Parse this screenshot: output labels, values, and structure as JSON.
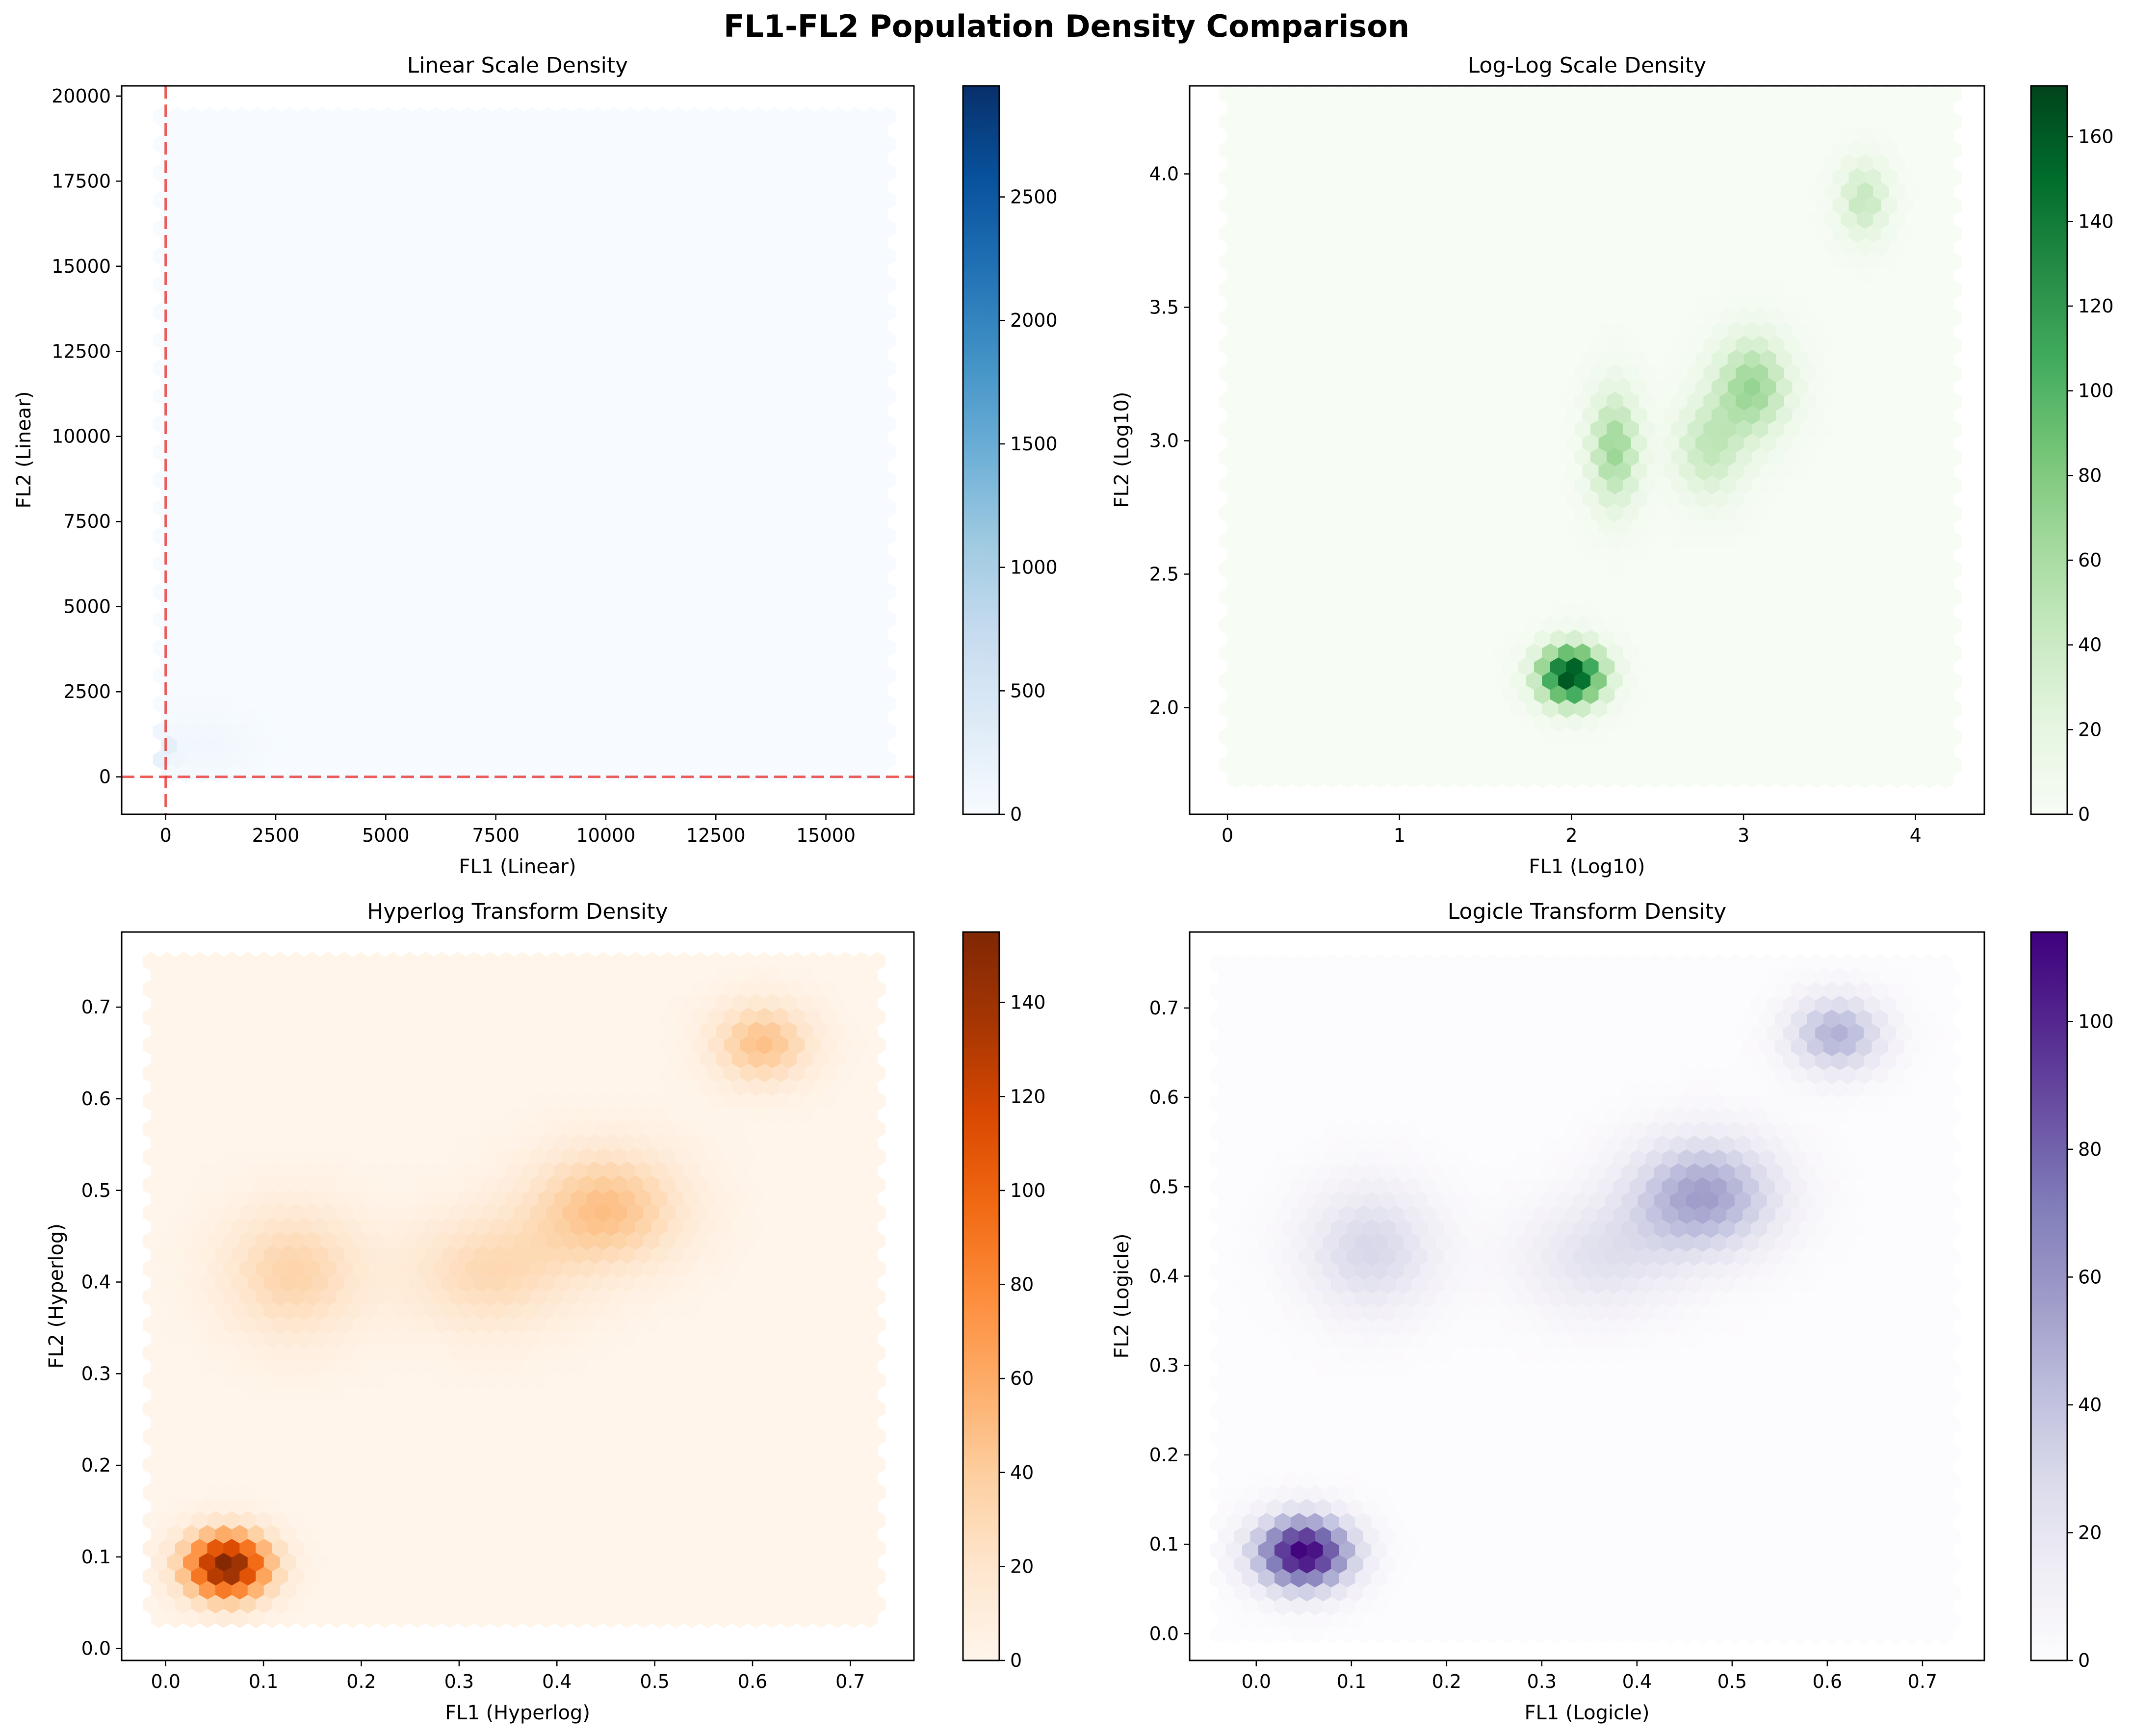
{
  "figure": {
    "suptitle": "FL1-FL2 Population Density Comparison"
  },
  "chart_data": [
    {
      "type": "heatmap",
      "subtype": "hexbin",
      "title": "Linear Scale Density",
      "xlabel": "FL1 (Linear)",
      "ylabel": "FL2 (Linear)",
      "xlim": [
        -1000,
        17000
      ],
      "ylim": [
        -1100,
        20300
      ],
      "data_extent": {
        "x": [
          -100,
          16400
        ],
        "y": [
          -150,
          19400
        ]
      },
      "xticks": [
        0,
        2500,
        5000,
        7500,
        10000,
        12500,
        15000
      ],
      "yticks": [
        0,
        2500,
        5000,
        7500,
        10000,
        12500,
        15000,
        17500,
        20000
      ],
      "colormap": "Blues",
      "colorbar": {
        "min": 0,
        "max": 2950,
        "ticks": [
          0,
          500,
          1000,
          1500,
          2000,
          2500
        ]
      },
      "reference_lines": {
        "x": 0,
        "y": 0,
        "color": "#e8403c",
        "style": "dashed"
      },
      "clusters": [
        {
          "x": -150,
          "y": -150,
          "peak": 2950,
          "sx": 60,
          "sy": 60
        },
        {
          "x": -50,
          "y": 800,
          "peak": 280,
          "sx": 220,
          "sy": 320
        },
        {
          "x": 900,
          "y": 900,
          "peak": 90,
          "sx": 800,
          "sy": 700
        }
      ]
    },
    {
      "type": "heatmap",
      "subtype": "hexbin",
      "title": "Log-Log Scale Density",
      "xlabel": "FL1 (Log10)",
      "ylabel": "FL2 (Log10)",
      "xlim": [
        -0.22,
        4.4
      ],
      "ylim": [
        1.6,
        4.33
      ],
      "data_extent": {
        "x": [
          0,
          4.25
        ],
        "y": [
          1.7,
          4.3
        ]
      },
      "xticks": [
        0,
        1,
        2,
        3,
        4
      ],
      "yticks": [
        2.0,
        2.5,
        3.0,
        3.5,
        4.0
      ],
      "colormap": "Greens",
      "colorbar": {
        "min": 0,
        "max": 172,
        "ticks": [
          0,
          20,
          40,
          60,
          80,
          100,
          120,
          140,
          160
        ]
      },
      "clusters": [
        {
          "x": 2.0,
          "y": 2.12,
          "peak": 172,
          "sx": 0.13,
          "sy": 0.075
        },
        {
          "x": 2.25,
          "y": 2.97,
          "peak": 68,
          "sx": 0.1,
          "sy": 0.15
        },
        {
          "x": 2.8,
          "y": 2.97,
          "peak": 45,
          "sx": 0.14,
          "sy": 0.13
        },
        {
          "x": 3.05,
          "y": 3.2,
          "peak": 68,
          "sx": 0.15,
          "sy": 0.13
        },
        {
          "x": 3.7,
          "y": 3.9,
          "peak": 45,
          "sx": 0.1,
          "sy": 0.1
        }
      ]
    },
    {
      "type": "heatmap",
      "subtype": "hexbin",
      "title": "Hyperlog Transform Density",
      "xlabel": "FL1 (Hyperlog)",
      "ylabel": "FL2 (Hyperlog)",
      "xlim": [
        -0.045,
        0.765
      ],
      "ylim": [
        -0.013,
        0.782
      ],
      "data_extent": {
        "x": [
          -0.015,
          0.735
        ],
        "y": [
          0.02,
          0.75
        ]
      },
      "xticks": [
        0.0,
        0.1,
        0.2,
        0.3,
        0.4,
        0.5,
        0.6,
        0.7
      ],
      "yticks": [
        0.0,
        0.1,
        0.2,
        0.3,
        0.4,
        0.5,
        0.6,
        0.7
      ],
      "colormap": "Oranges",
      "colorbar": {
        "min": 0,
        "max": 155,
        "ticks": [
          0,
          20,
          40,
          60,
          80,
          100,
          120,
          140
        ]
      },
      "clusters": [
        {
          "x": 0.063,
          "y": 0.09,
          "peak": 155,
          "sx": 0.03,
          "sy": 0.025
        },
        {
          "x": 0.13,
          "y": 0.41,
          "peak": 35,
          "sx": 0.05,
          "sy": 0.05
        },
        {
          "x": 0.33,
          "y": 0.41,
          "peak": 30,
          "sx": 0.06,
          "sy": 0.045
        },
        {
          "x": 0.45,
          "y": 0.48,
          "peak": 48,
          "sx": 0.055,
          "sy": 0.045
        },
        {
          "x": 0.61,
          "y": 0.66,
          "peak": 48,
          "sx": 0.035,
          "sy": 0.03
        }
      ]
    },
    {
      "type": "heatmap",
      "subtype": "hexbin",
      "title": "Logicle Transform Density",
      "xlabel": "FL1 (Logicle)",
      "ylabel": "FL2 (Logicle)",
      "xlim": [
        -0.07,
        0.765
      ],
      "ylim": [
        -0.03,
        0.785
      ],
      "data_extent": {
        "x": [
          -0.04,
          0.735
        ],
        "y": [
          -0.005,
          0.75
        ]
      },
      "xticks": [
        0.0,
        0.1,
        0.2,
        0.3,
        0.4,
        0.5,
        0.6,
        0.7
      ],
      "yticks": [
        0.0,
        0.1,
        0.2,
        0.3,
        0.4,
        0.5,
        0.6,
        0.7
      ],
      "colormap": "Purples",
      "colorbar": {
        "min": 0,
        "max": 114,
        "ticks": [
          0,
          20,
          40,
          60,
          80,
          100
        ]
      },
      "clusters": [
        {
          "x": 0.05,
          "y": 0.09,
          "peak": 114,
          "sx": 0.035,
          "sy": 0.028
        },
        {
          "x": 0.12,
          "y": 0.43,
          "peak": 30,
          "sx": 0.05,
          "sy": 0.05
        },
        {
          "x": 0.36,
          "y": 0.42,
          "peak": 22,
          "sx": 0.06,
          "sy": 0.045
        },
        {
          "x": 0.47,
          "y": 0.49,
          "peak": 55,
          "sx": 0.055,
          "sy": 0.045
        },
        {
          "x": 0.61,
          "y": 0.67,
          "peak": 48,
          "sx": 0.035,
          "sy": 0.03
        }
      ]
    }
  ]
}
